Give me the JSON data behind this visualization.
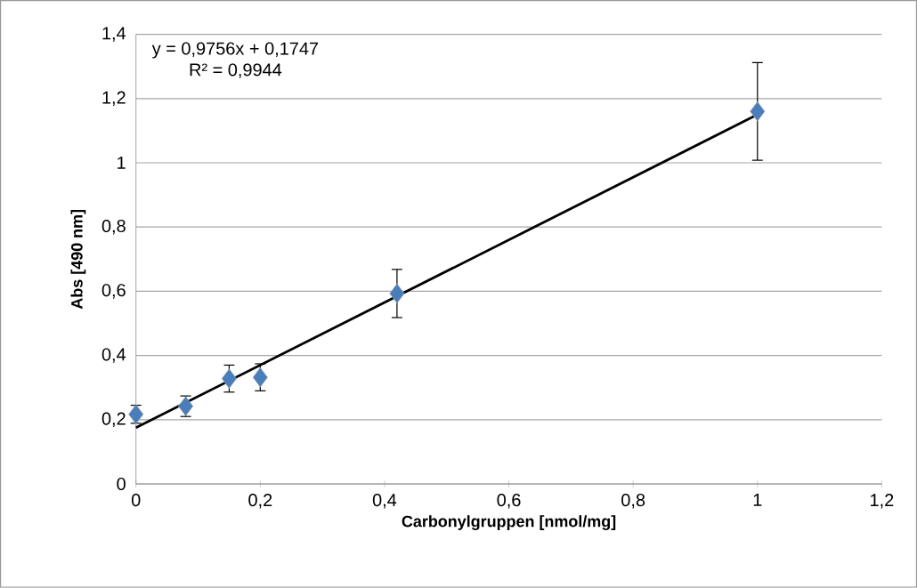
{
  "chart_data": {
    "type": "scatter",
    "xlabel": "Carbonylgruppen [nmol/mg]",
    "ylabel": "Abs [490 nm]",
    "annotations": [
      "y = 0,9756x + 0,1747",
      "R² = 0,9944"
    ],
    "series": [
      {
        "color": "#4a7ebb",
        "x": [
          0,
          0.08,
          0.15,
          0.2,
          0.42,
          1
        ],
        "values": [
          0.217,
          0.242,
          0.328,
          0.332,
          0.593,
          1.16
        ],
        "errors": [
          0.028,
          0.032,
          0.042,
          0.042,
          0.075,
          0.152
        ],
        "marker": "diamond"
      },
      {
        "type": "line",
        "color": "#000000",
        "x": [
          0,
          1
        ],
        "values": [
          0.175,
          1.15
        ],
        "marker": "none",
        "line_style": "solid"
      }
    ],
    "xlim": [
      0,
      1.2
    ],
    "ylim": [
      0,
      1.4
    ],
    "xticks": [
      0,
      {
        "value": 0.2,
        "label": "0,2"
      },
      {
        "value": 0.4,
        "label": "0,4"
      },
      {
        "value": 0.6,
        "label": "0,6"
      },
      {
        "value": 0.8,
        "label": "0,8"
      },
      1,
      {
        "value": 1.2,
        "label": "1,2"
      }
    ],
    "yticks": [
      0,
      {
        "value": 0.2,
        "label": "0,2"
      },
      {
        "value": 0.4,
        "label": "0,4"
      },
      {
        "value": 0.6,
        "label": "0,6"
      },
      {
        "value": 0.8,
        "label": "0,8"
      },
      1,
      {
        "value": 1.2,
        "label": "1,2"
      },
      {
        "value": 1.4,
        "label": "1,4"
      }
    ],
    "grid": "y"
  }
}
